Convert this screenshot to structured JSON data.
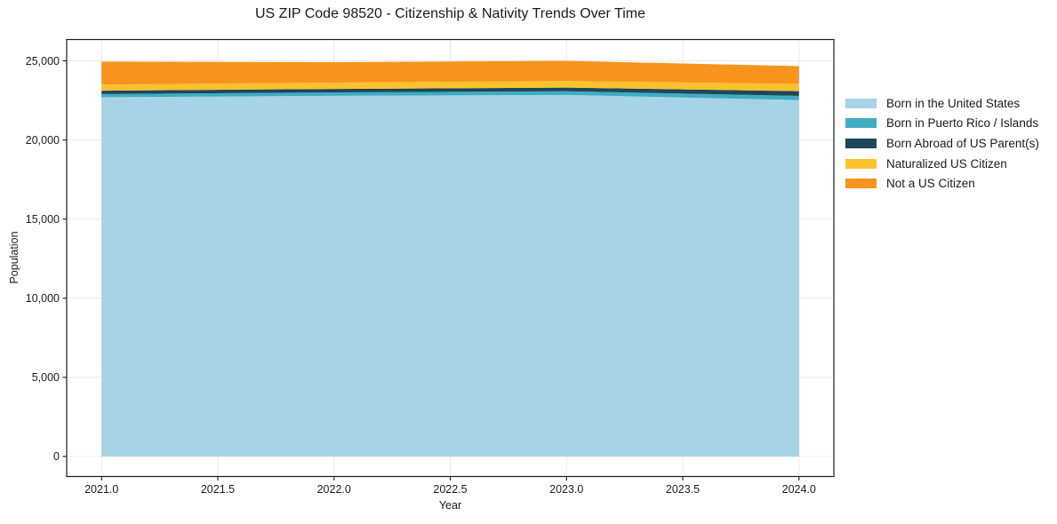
{
  "title": "US ZIP Code 98520 - Citizenship & Nativity Trends Over Time",
  "colors": {
    "background": "#FFFFFF",
    "grid": "#E9E9E9",
    "spine": "#1A1A1A",
    "text": "#1A1A1A"
  },
  "chart_data": {
    "type": "area",
    "stacked": true,
    "title": "US ZIP Code 98520 - Citizenship & Nativity Trends Over Time",
    "xlabel": "Year",
    "ylabel": "Population",
    "x": [
      2021,
      2022,
      2023,
      2024
    ],
    "series": [
      {
        "name": "Born in the United States",
        "color": "#A6D3E5",
        "values": [
          22700,
          22790,
          22850,
          22520
        ]
      },
      {
        "name": "Born in Puerto Rico / Islands",
        "color": "#3FACC4",
        "values": [
          200,
          215,
          230,
          265
        ]
      },
      {
        "name": "Born Abroad of US Parent(s)",
        "color": "#1E4759",
        "values": [
          215,
          220,
          230,
          300
        ]
      },
      {
        "name": "Naturalized US Citizen",
        "color": "#FCC22E",
        "values": [
          385,
          400,
          420,
          460
        ]
      },
      {
        "name": "Not a US Citizen",
        "color": "#F7941E",
        "values": [
          1450,
          1290,
          1270,
          1120
        ]
      }
    ],
    "totals": [
      24950,
      24915,
      25000,
      24665
    ],
    "xticks": [
      2021.0,
      2021.5,
      2022.0,
      2022.5,
      2023.0,
      2023.5,
      2024.0
    ],
    "xtick_labels": [
      "2021.0",
      "2021.5",
      "2022.0",
      "2022.5",
      "2023.0",
      "2023.5",
      "2024.0"
    ],
    "yticks": [
      0,
      5000,
      10000,
      15000,
      20000,
      25000
    ],
    "ytick_labels": [
      "0",
      "5,000",
      "10,000",
      "15,000",
      "20,000",
      "25,000"
    ],
    "xlim": [
      2020.85,
      2024.15
    ],
    "ylim": [
      -1263,
      26347
    ],
    "grid": true,
    "legend_position": "outside-right"
  }
}
